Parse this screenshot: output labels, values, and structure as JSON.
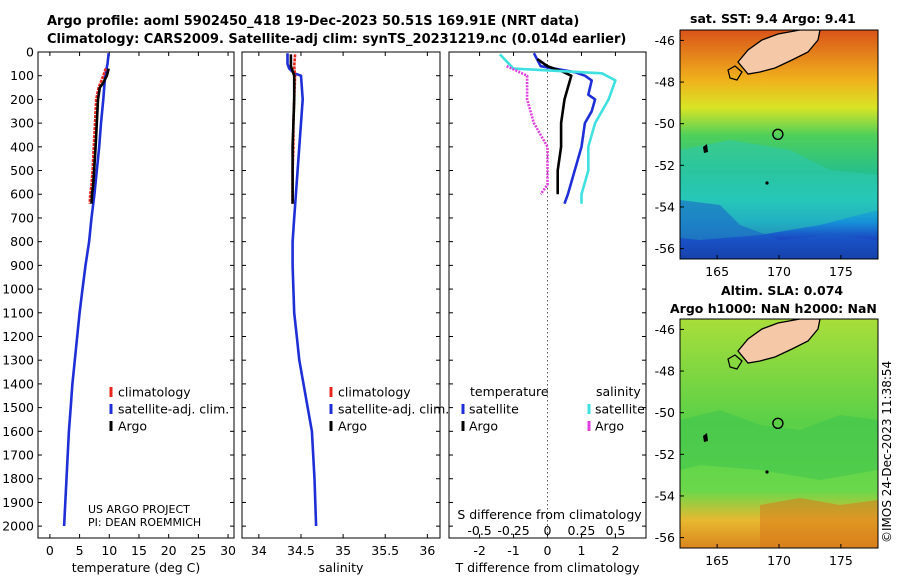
{
  "header": {
    "title_line1": "Argo profile: aoml 5902450_418 19-Dec-2023 50.51S 169.91E (NRT data)",
    "title_line2": "Climatology: CARS2009. Satellite-adj clim: synTS_20231219.nc (0.014d earlier)"
  },
  "colors": {
    "climatology": "#e8261c",
    "satellite": "#1e2fd8",
    "argo": "#000000",
    "sat_diff": "#3fe0e0",
    "sal_argo_diff": "#e040e0"
  },
  "chart_data": [
    {
      "type": "line",
      "panel": "temperature",
      "xlabel": "temperature (deg C)",
      "xlim": [
        -2,
        31
      ],
      "xticks": [
        0,
        5,
        10,
        15,
        20,
        25,
        30
      ],
      "xtick_labels": [
        "0",
        "5",
        "10",
        "15",
        "20",
        "25",
        "30"
      ],
      "ylim": [
        2050,
        0
      ],
      "yticks": [
        0,
        100,
        200,
        300,
        400,
        500,
        600,
        700,
        800,
        900,
        1000,
        1100,
        1200,
        1300,
        1400,
        1500,
        1600,
        1700,
        1800,
        1900,
        2000
      ],
      "ytick_labels": [
        "0",
        "100",
        "200",
        "300",
        "400",
        "500",
        "600",
        "700",
        "800",
        "900",
        "1000",
        "1100",
        "1200",
        "1300",
        "1400",
        "1500",
        "1600",
        "1700",
        "1800",
        "1900",
        "2000"
      ],
      "legend": [
        {
          "label": "climatology",
          "color": "#e8261c"
        },
        {
          "label": "satellite-adj. clim.",
          "color": "#1e2fd8"
        },
        {
          "label": "Argo",
          "color": "#000000"
        }
      ],
      "credit": [
        "US ARGO PROJECT",
        "PI: DEAN ROEMMICH"
      ],
      "series": [
        {
          "name": "satellite-adj. clim.",
          "color": "#1e2fd8",
          "x": [
            9.9,
            9.7,
            9.3,
            9.0,
            8.6,
            8.3,
            7.9,
            7.5,
            7.0,
            6.6,
            6.0,
            5.5,
            5.0,
            4.6,
            4.2,
            3.8,
            3.5,
            3.2,
            3.0,
            2.8,
            2.6,
            2.5,
            2.4,
            2.4
          ],
          "y": [
            5,
            50,
            100,
            200,
            300,
            400,
            500,
            600,
            700,
            800,
            900,
            1000,
            1100,
            1200,
            1300,
            1400,
            1500,
            1600,
            1700,
            1800,
            1900,
            1950,
            2000,
            2000
          ]
        },
        {
          "name": "climatology",
          "color": "#e8261c",
          "x": [
            9.4,
            9.0,
            8.2,
            7.8,
            7.6,
            7.4,
            7.2,
            7.0,
            6.8,
            6.7
          ],
          "y": [
            70,
            100,
            150,
            200,
            300,
            400,
            500,
            560,
            600,
            640
          ]
        },
        {
          "name": "Argo",
          "color": "#000000",
          "x": [
            9.9,
            9.6,
            9.0,
            8.4,
            8.1,
            7.9,
            7.7,
            7.5,
            7.3,
            7.1,
            7.0
          ],
          "y": [
            70,
            100,
            130,
            150,
            200,
            300,
            400,
            480,
            560,
            600,
            640
          ]
        }
      ]
    },
    {
      "type": "line",
      "panel": "salinity",
      "xlabel": "salinity",
      "xlim": [
        33.8,
        36.15
      ],
      "xticks": [
        34,
        34.5,
        35,
        35.5,
        36
      ],
      "xtick_labels": [
        "34",
        "34.5",
        "35",
        "35.5",
        "36"
      ],
      "ylim": [
        2050,
        0
      ],
      "legend": [
        {
          "label": "climatology",
          "color": "#e8261c"
        },
        {
          "label": "satellite-adj. clim.",
          "color": "#1e2fd8"
        },
        {
          "label": "Argo",
          "color": "#000000"
        }
      ],
      "series": [
        {
          "name": "satellite-adj. clim.",
          "color": "#1e2fd8",
          "x": [
            34.34,
            34.34,
            34.36,
            34.42,
            34.5,
            34.52,
            34.5,
            34.48,
            34.46,
            34.44,
            34.42,
            34.4,
            34.4,
            34.41,
            34.42,
            34.45,
            34.48,
            34.53,
            34.58,
            34.63,
            34.66,
            34.68
          ],
          "y": [
            5,
            50,
            70,
            90,
            100,
            200,
            300,
            400,
            500,
            600,
            700,
            800,
            900,
            1000,
            1100,
            1200,
            1300,
            1400,
            1500,
            1600,
            1800,
            2000
          ]
        },
        {
          "name": "climatology",
          "color": "#e8261c",
          "x": [
            34.43,
            34.42,
            34.43,
            34.42,
            34.41,
            34.41,
            34.4,
            34.4
          ],
          "y": [
            10,
            60,
            100,
            200,
            300,
            400,
            500,
            640
          ]
        },
        {
          "name": "Argo",
          "color": "#000000",
          "x": [
            34.38,
            34.38,
            34.4,
            34.42,
            34.42,
            34.41,
            34.4,
            34.4,
            34.4
          ],
          "y": [
            10,
            60,
            80,
            100,
            200,
            300,
            400,
            500,
            640
          ]
        }
      ]
    },
    {
      "type": "line",
      "panel": "difference",
      "xlabel": "T difference from climatology",
      "xlabel_top": "S difference from climatology",
      "xlim": [
        -2.9,
        2.9
      ],
      "xticks": [
        -2,
        -1,
        0,
        1,
        2
      ],
      "xtick_labels": [
        "-2",
        "-1",
        "0",
        "1",
        "2"
      ],
      "sticks": [
        -0.5,
        -0.25,
        0,
        0.25,
        0.5
      ],
      "stick_labels": [
        "-0.5",
        "-0.25",
        "0",
        "0.25",
        "0.5"
      ],
      "s_scale": 4,
      "ylim": [
        2050,
        0
      ],
      "legend_headers": [
        "temperature",
        "salinity"
      ],
      "legend_temperature": [
        {
          "label": "satellite",
          "color": "#1e2fd8"
        },
        {
          "label": "Argo",
          "color": "#000000"
        }
      ],
      "legend_salinity": [
        {
          "label": "satellite",
          "color": "#3fe0e0"
        },
        {
          "label": "Argo",
          "color": "#e040e0"
        }
      ],
      "series": [
        {
          "name": "T satellite",
          "color": "#1e2fd8",
          "x": [
            -0.4,
            -0.2,
            0.8,
            1.1,
            1.3,
            1.2,
            1.4,
            1.3,
            1.1,
            1.0,
            0.9,
            0.8,
            0.7,
            0.6,
            0.5
          ],
          "y": [
            5,
            60,
            85,
            100,
            120,
            180,
            200,
            250,
            300,
            400,
            450,
            500,
            550,
            600,
            640
          ]
        },
        {
          "name": "T Argo",
          "color": "#000000",
          "x": [
            -0.3,
            0.0,
            0.4,
            0.7,
            0.5,
            0.4,
            0.4,
            0.3,
            0.3,
            0.3
          ],
          "y": [
            30,
            60,
            80,
            100,
            200,
            300,
            400,
            500,
            560,
            600
          ]
        },
        {
          "name": "S satellite",
          "color": "#3fe0e0",
          "x": [
            -0.35,
            -0.25,
            0.4,
            0.5,
            0.45,
            0.35,
            0.3,
            0.3,
            0.3,
            0.25,
            0.25
          ],
          "y": [
            10,
            70,
            90,
            120,
            200,
            300,
            400,
            450,
            500,
            600,
            640
          ]
        },
        {
          "name": "S Argo",
          "color": "#e040e0",
          "x": [
            -0.3,
            -0.15,
            -0.15,
            -0.1,
            -0.05,
            0.0,
            0.0,
            0.0,
            -0.05
          ],
          "y": [
            60,
            100,
            200,
            300,
            350,
            400,
            500,
            560,
            600
          ]
        }
      ]
    }
  ],
  "map_sst": {
    "title": "sat. SST: 9.4 Argo: 9.41",
    "xticks": [
      "165",
      "170",
      "175"
    ],
    "yticks": [
      "-46",
      "-48",
      "-50",
      "-52",
      "-54",
      "-56"
    ],
    "xlim": [
      162,
      178
    ],
    "ylim": [
      -56.5,
      -45.5
    ],
    "profile_lon": 169.91,
    "profile_lat": -50.51
  },
  "map_sla": {
    "title_line1": "Altim. SLA: 0.074",
    "title_line2": "Argo h1000: NaN h2000: NaN",
    "xticks": [
      "165",
      "170",
      "175"
    ],
    "yticks": [
      "-46",
      "-48",
      "-50",
      "-52",
      "-54",
      "-56"
    ],
    "xlim": [
      162,
      178
    ],
    "ylim": [
      -56.5,
      -45.5
    ],
    "profile_lon": 169.91,
    "profile_lat": -50.51
  },
  "stamp": "©IMOS 24-Dec-2023 11:38:54"
}
